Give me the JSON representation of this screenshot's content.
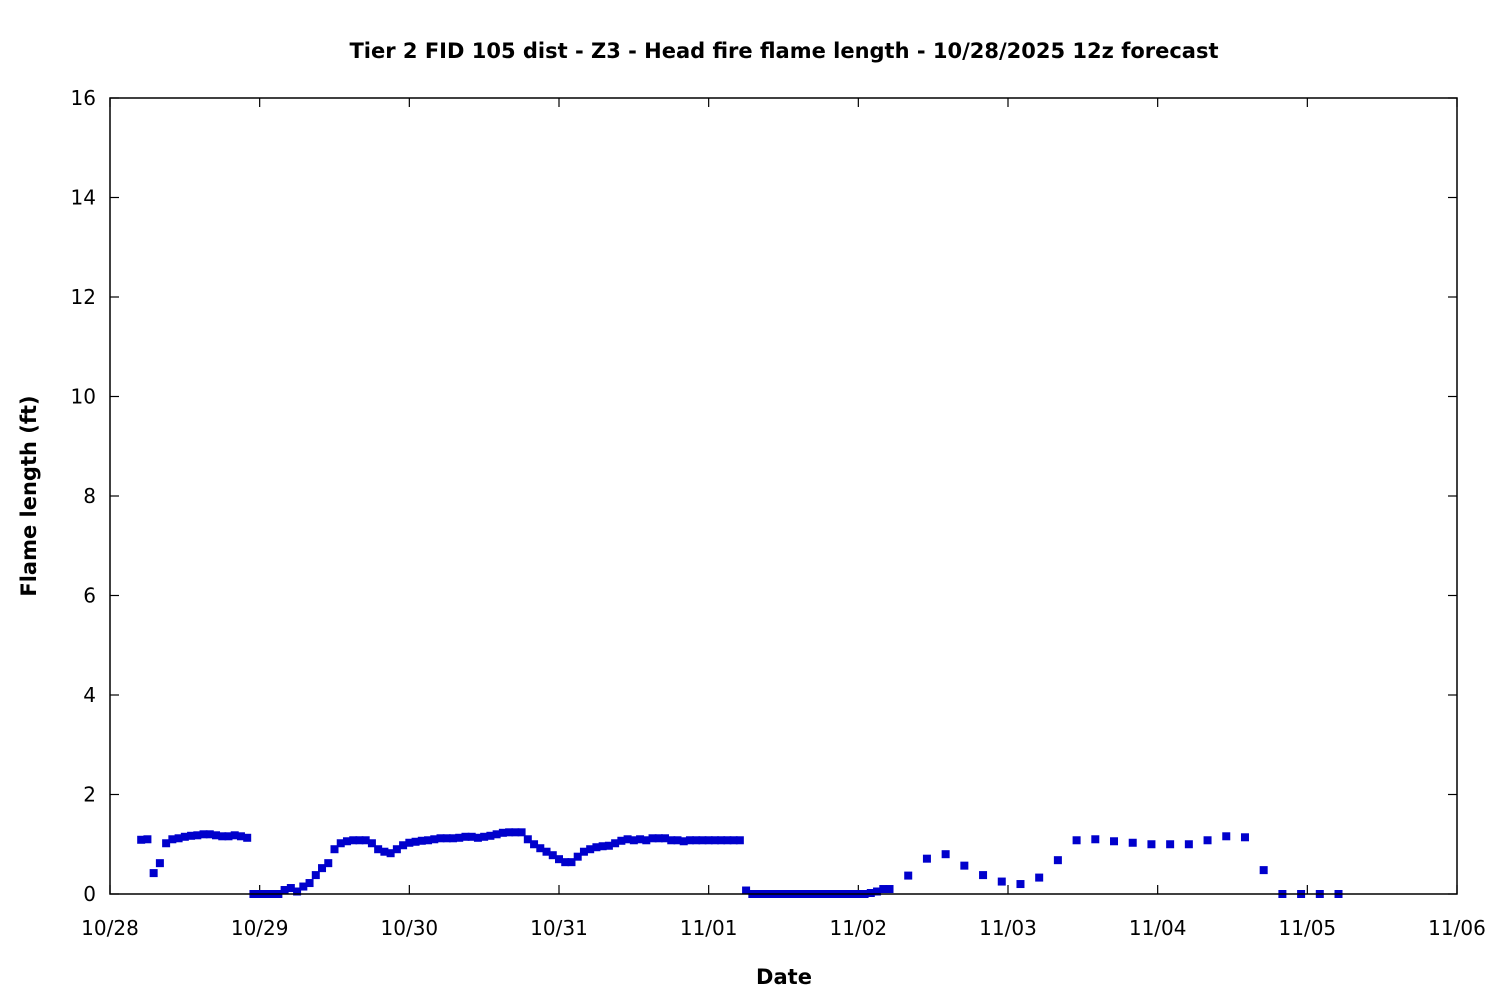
{
  "chart_data": {
    "type": "scatter",
    "title": "Tier 2 FID 105 dist - Z3 - Head fire flame length - 10/28/2025 12z forecast",
    "xlabel": "Date",
    "ylabel": "Flame length (ft)",
    "year": 2025,
    "xlim": [
      "10/28 00",
      "11/06 00"
    ],
    "ylim": [
      0,
      16
    ],
    "xticks": [
      "10/28",
      "10/29",
      "10/30",
      "10/31",
      "11/01",
      "11/02",
      "11/03",
      "11/04",
      "11/05",
      "11/06"
    ],
    "yticks": [
      0,
      2,
      4,
      6,
      8,
      10,
      12,
      14,
      16
    ],
    "grid": false,
    "marker_color": "#0000cc",
    "marker": "square",
    "series": [
      {
        "x": [
          "10/28 05",
          "10/28 06",
          "10/28 07",
          "10/28 08",
          "10/28 09",
          "10/28 10",
          "10/28 11",
          "10/28 12",
          "10/28 13",
          "10/28 14",
          "10/28 15",
          "10/28 16",
          "10/28 17",
          "10/28 18",
          "10/28 19",
          "10/28 20",
          "10/28 21",
          "10/28 22",
          "10/28 23",
          "10/29 00",
          "10/29 01",
          "10/29 02",
          "10/29 03",
          "10/29 04",
          "10/29 05",
          "10/29 06",
          "10/29 07",
          "10/29 08",
          "10/29 09",
          "10/29 10",
          "10/29 11",
          "10/29 12",
          "10/29 13",
          "10/29 14",
          "10/29 15",
          "10/29 16",
          "10/29 17",
          "10/29 18",
          "10/29 19",
          "10/29 20",
          "10/29 21",
          "10/29 22",
          "10/29 23",
          "10/30 00",
          "10/30 01",
          "10/30 02",
          "10/30 03",
          "10/30 04",
          "10/30 05",
          "10/30 06",
          "10/30 07",
          "10/30 08",
          "10/30 09",
          "10/30 10",
          "10/30 11",
          "10/30 12",
          "10/30 13",
          "10/30 14",
          "10/30 15",
          "10/30 16",
          "10/30 17",
          "10/30 18",
          "10/30 19",
          "10/30 20",
          "10/30 21",
          "10/30 22",
          "10/30 23",
          "10/31 00",
          "10/31 01",
          "10/31 02",
          "10/31 03",
          "10/31 04",
          "10/31 05",
          "10/31 06",
          "10/31 07",
          "10/31 08",
          "10/31 09",
          "10/31 10",
          "10/31 11",
          "10/31 12",
          "10/31 13",
          "10/31 14",
          "10/31 15",
          "10/31 16",
          "10/31 17",
          "10/31 18",
          "10/31 19",
          "10/31 20",
          "10/31 21",
          "10/31 22",
          "10/31 23",
          "11/01 00",
          "11/01 01",
          "11/01 02",
          "11/01 03",
          "11/01 04",
          "11/01 05",
          "11/01 06",
          "11/01 07",
          "11/01 08",
          "11/01 09",
          "11/01 10",
          "11/01 11",
          "11/01 12",
          "11/01 13",
          "11/01 14",
          "11/01 15",
          "11/01 16",
          "11/01 17",
          "11/01 18",
          "11/01 19",
          "11/01 20",
          "11/01 21",
          "11/01 22",
          "11/01 23",
          "11/02 00",
          "11/02 01",
          "11/02 02",
          "11/02 03",
          "11/02 04",
          "11/02 05",
          "11/02 08",
          "11/02 11",
          "11/02 14",
          "11/02 17",
          "11/02 20",
          "11/02 23",
          "11/03 02",
          "11/03 05",
          "11/03 08",
          "11/03 11",
          "11/03 14",
          "11/03 17",
          "11/03 20",
          "11/03 23",
          "11/04 02",
          "11/04 05",
          "11/04 08",
          "11/04 11",
          "11/04 14",
          "11/04 17",
          "11/04 20",
          "11/04 23",
          "11/05 02",
          "11/05 05"
        ],
        "y": [
          1.09,
          1.1,
          0.42,
          0.62,
          1.02,
          1.1,
          1.12,
          1.15,
          1.17,
          1.18,
          1.2,
          1.2,
          1.18,
          1.16,
          1.16,
          1.18,
          1.16,
          1.13,
          0,
          0,
          0,
          0,
          0,
          0.08,
          0.12,
          0.05,
          0.15,
          0.22,
          0.38,
          0.52,
          0.62,
          0.9,
          1.02,
          1.06,
          1.08,
          1.08,
          1.08,
          1.02,
          0.9,
          0.85,
          0.82,
          0.9,
          0.98,
          1.03,
          1.05,
          1.07,
          1.08,
          1.1,
          1.12,
          1.12,
          1.12,
          1.13,
          1.15,
          1.15,
          1.13,
          1.15,
          1.17,
          1.2,
          1.23,
          1.24,
          1.24,
          1.24,
          1.1,
          1.0,
          0.92,
          0.85,
          0.78,
          0.7,
          0.64,
          0.64,
          0.75,
          0.85,
          0.9,
          0.94,
          0.96,
          0.97,
          1.02,
          1.07,
          1.1,
          1.08,
          1.1,
          1.08,
          1.12,
          1.12,
          1.12,
          1.08,
          1.08,
          1.06,
          1.08,
          1.08,
          1.08,
          1.08,
          1.08,
          1.08,
          1.08,
          1.08,
          1.08,
          0.07,
          0,
          0,
          0,
          0,
          0,
          0,
          0,
          0,
          0,
          0,
          0,
          0,
          0,
          0,
          0,
          0,
          0,
          0,
          0,
          0.02,
          0.05,
          0.1,
          0.1,
          0.37,
          0.71,
          0.8,
          0.57,
          0.38,
          0.25,
          0.2,
          0.33,
          0.68,
          1.08,
          1.1,
          1.06,
          1.03,
          1.0,
          1.0,
          1.0,
          1.08,
          1.16,
          1.14,
          0.48,
          0,
          0,
          0,
          0
        ]
      }
    ]
  }
}
